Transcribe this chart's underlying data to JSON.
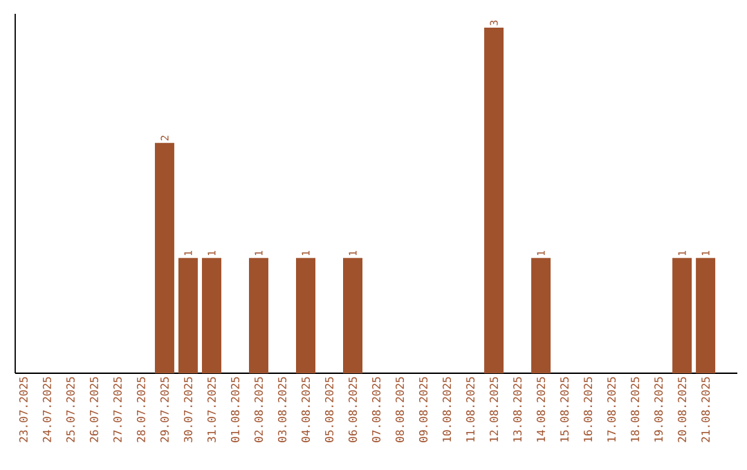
{
  "chart_data": {
    "type": "bar",
    "categories": [
      "23.07.2025",
      "24.07.2025",
      "25.07.2025",
      "26.07.2025",
      "27.07.2025",
      "28.07.2025",
      "29.07.2025",
      "30.07.2025",
      "31.07.2025",
      "01.08.2025",
      "02.08.2025",
      "03.08.2025",
      "04.08.2025",
      "05.08.2025",
      "06.08.2025",
      "07.08.2025",
      "08.08.2025",
      "09.08.2025",
      "10.08.2025",
      "11.08.2025",
      "12.08.2025",
      "13.08.2025",
      "14.08.2025",
      "15.08.2025",
      "16.08.2025",
      "17.08.2025",
      "18.08.2025",
      "19.08.2025",
      "20.08.2025",
      "21.08.2025"
    ],
    "values": [
      0,
      0,
      0,
      0,
      0,
      0,
      2,
      1,
      1,
      0,
      1,
      0,
      1,
      0,
      1,
      0,
      0,
      0,
      0,
      0,
      3,
      0,
      1,
      0,
      0,
      0,
      0,
      0,
      1,
      1
    ],
    "value_labels": [
      null,
      null,
      null,
      null,
      null,
      null,
      "2",
      "1",
      "1",
      null,
      "1",
      null,
      "1",
      null,
      "1",
      null,
      null,
      null,
      null,
      null,
      "3",
      null,
      "1",
      null,
      null,
      null,
      null,
      null,
      "1",
      "1"
    ],
    "color": "#a0522d",
    "tick_labels": "x"
  }
}
